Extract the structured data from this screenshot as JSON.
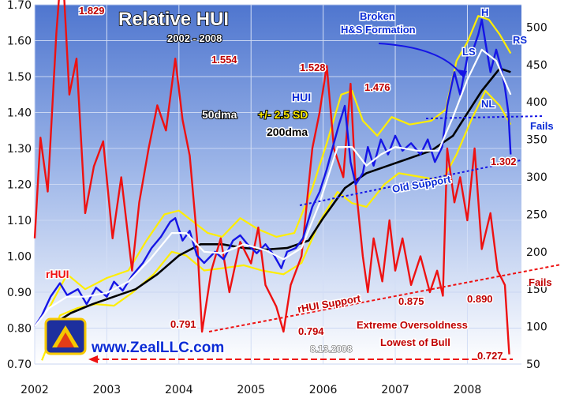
{
  "chart_data": {
    "type": "line",
    "title": "Relative HUI",
    "subtitle": "2002 - 2008",
    "x_ticks": [
      "2002",
      "2003",
      "2004",
      "2005",
      "2006",
      "2007",
      "2008"
    ],
    "y_left": {
      "ticks": [
        "0.70",
        "0.80",
        "0.90",
        "1.00",
        "1.10",
        "1.20",
        "1.30",
        "1.40",
        "1.50",
        "1.60",
        "1.70"
      ],
      "range": [
        0.7,
        1.7
      ]
    },
    "y_right": {
      "ticks": [
        "50",
        "100",
        "150",
        "200",
        "250",
        "300",
        "350",
        "400",
        "450",
        "500"
      ],
      "range": [
        50,
        530
      ]
    },
    "legend_inline": {
      "hui": "HUI",
      "dma50": "50dma",
      "sd": "+/- 2.5 SD",
      "dma200": "200dma",
      "rhui": "rHUI"
    },
    "series": [
      {
        "name": "rHUI",
        "axis": "left",
        "color": "#ee1111",
        "points": [
          [
            2002.0,
            1.05
          ],
          [
            2002.08,
            1.33
          ],
          [
            2002.18,
            1.18
          ],
          [
            2002.3,
            1.62
          ],
          [
            2002.38,
            1.83
          ],
          [
            2002.48,
            1.45
          ],
          [
            2002.58,
            1.55
          ],
          [
            2002.7,
            1.12
          ],
          [
            2002.82,
            1.25
          ],
          [
            2002.95,
            1.32
          ],
          [
            2003.08,
            1.05
          ],
          [
            2003.2,
            1.22
          ],
          [
            2003.35,
            0.96
          ],
          [
            2003.45,
            1.15
          ],
          [
            2003.58,
            1.3
          ],
          [
            2003.7,
            1.42
          ],
          [
            2003.82,
            1.35
          ],
          [
            2003.95,
            1.55
          ],
          [
            2004.05,
            1.38
          ],
          [
            2004.15,
            1.28
          ],
          [
            2004.25,
            1.05
          ],
          [
            2004.32,
            0.79
          ],
          [
            2004.45,
            0.96
          ],
          [
            2004.58,
            1.05
          ],
          [
            2004.7,
            0.9
          ],
          [
            2004.85,
            1.04
          ],
          [
            2005.0,
            0.98
          ],
          [
            2005.1,
            1.08
          ],
          [
            2005.2,
            0.92
          ],
          [
            2005.35,
            0.86
          ],
          [
            2005.45,
            0.79
          ],
          [
            2005.55,
            0.92
          ],
          [
            2005.7,
            1.0
          ],
          [
            2005.85,
            1.3
          ],
          [
            2005.95,
            1.4
          ],
          [
            2006.05,
            1.53
          ],
          [
            2006.15,
            1.3
          ],
          [
            2006.28,
            1.22
          ],
          [
            2006.38,
            1.48
          ],
          [
            2006.45,
            1.2
          ],
          [
            2006.55,
            1.0
          ],
          [
            2006.62,
            0.9
          ],
          [
            2006.7,
            1.05
          ],
          [
            2006.82,
            0.93
          ],
          [
            2006.92,
            1.1
          ],
          [
            2007.0,
            0.96
          ],
          [
            2007.1,
            1.05
          ],
          [
            2007.22,
            0.92
          ],
          [
            2007.35,
            1.0
          ],
          [
            2007.48,
            0.9
          ],
          [
            2007.58,
            0.96
          ],
          [
            2007.66,
            0.89
          ],
          [
            2007.72,
            1.3
          ],
          [
            2007.82,
            1.15
          ],
          [
            2007.9,
            1.22
          ],
          [
            2008.0,
            1.1
          ],
          [
            2008.1,
            1.3
          ],
          [
            2008.2,
            1.02
          ],
          [
            2008.32,
            1.12
          ],
          [
            2008.42,
            0.96
          ],
          [
            2008.52,
            0.92
          ],
          [
            2008.58,
            0.727
          ]
        ]
      },
      {
        "name": "HUI",
        "axis": "right",
        "color": "#1515e6",
        "points": [
          [
            2002.0,
            100
          ],
          [
            2002.1,
            115
          ],
          [
            2002.22,
            140
          ],
          [
            2002.35,
            158
          ],
          [
            2002.45,
            142
          ],
          [
            2002.6,
            150
          ],
          [
            2002.72,
            130
          ],
          [
            2002.85,
            152
          ],
          [
            2003.0,
            140
          ],
          [
            2003.1,
            160
          ],
          [
            2003.22,
            148
          ],
          [
            2003.35,
            168
          ],
          [
            2003.5,
            185
          ],
          [
            2003.62,
            205
          ],
          [
            2003.75,
            220
          ],
          [
            2003.88,
            240
          ],
          [
            2003.95,
            245
          ],
          [
            2004.05,
            215
          ],
          [
            2004.15,
            228
          ],
          [
            2004.25,
            195
          ],
          [
            2004.35,
            185
          ],
          [
            2004.5,
            200
          ],
          [
            2004.62,
            190
          ],
          [
            2004.75,
            215
          ],
          [
            2004.85,
            222
          ],
          [
            2004.95,
            210
          ],
          [
            2005.08,
            198
          ],
          [
            2005.2,
            210
          ],
          [
            2005.32,
            195
          ],
          [
            2005.42,
            178
          ],
          [
            2005.5,
            200
          ],
          [
            2005.62,
            205
          ],
          [
            2005.72,
            218
          ],
          [
            2005.85,
            260
          ],
          [
            2005.95,
            280
          ],
          [
            2006.05,
            310
          ],
          [
            2006.12,
            335
          ],
          [
            2006.22,
            370
          ],
          [
            2006.3,
            395
          ],
          [
            2006.38,
            320
          ],
          [
            2006.45,
            290
          ],
          [
            2006.55,
            305
          ],
          [
            2006.62,
            340
          ],
          [
            2006.7,
            315
          ],
          [
            2006.8,
            350
          ],
          [
            2006.9,
            330
          ],
          [
            2007.0,
            355
          ],
          [
            2007.1,
            335
          ],
          [
            2007.22,
            345
          ],
          [
            2007.35,
            330
          ],
          [
            2007.45,
            350
          ],
          [
            2007.55,
            320
          ],
          [
            2007.65,
            340
          ],
          [
            2007.72,
            395
          ],
          [
            2007.82,
            440
          ],
          [
            2007.9,
            410
          ],
          [
            2008.0,
            460
          ],
          [
            2008.08,
            470
          ],
          [
            2008.15,
            490
          ],
          [
            2008.2,
            510
          ],
          [
            2008.25,
            480
          ],
          [
            2008.32,
            440
          ],
          [
            2008.4,
            470
          ],
          [
            2008.47,
            445
          ],
          [
            2008.52,
            420
          ],
          [
            2008.57,
            385
          ],
          [
            2008.6,
            330
          ]
        ]
      },
      {
        "name": "50dma",
        "axis": "right",
        "color": "#ffffff",
        "points": [
          [
            2002.0,
            100
          ],
          [
            2002.2,
            125
          ],
          [
            2002.45,
            140
          ],
          [
            2002.7,
            140
          ],
          [
            2003.0,
            145
          ],
          [
            2003.3,
            160
          ],
          [
            2003.6,
            190
          ],
          [
            2003.9,
            225
          ],
          [
            2004.1,
            225
          ],
          [
            2004.35,
            200
          ],
          [
            2004.6,
            198
          ],
          [
            2004.9,
            210
          ],
          [
            2005.2,
            202
          ],
          [
            2005.45,
            190
          ],
          [
            2005.7,
            205
          ],
          [
            2005.95,
            265
          ],
          [
            2006.2,
            340
          ],
          [
            2006.4,
            340
          ],
          [
            2006.6,
            315
          ],
          [
            2006.8,
            330
          ],
          [
            2007.0,
            340
          ],
          [
            2007.3,
            335
          ],
          [
            2007.6,
            335
          ],
          [
            2007.8,
            380
          ],
          [
            2008.0,
            430
          ],
          [
            2008.2,
            470
          ],
          [
            2008.4,
            455
          ],
          [
            2008.6,
            410
          ]
        ]
      },
      {
        "name": "200dma",
        "axis": "right",
        "color": "#000000",
        "points": [
          [
            2002.2,
            100
          ],
          [
            2002.5,
            118
          ],
          [
            2002.8,
            130
          ],
          [
            2003.1,
            140
          ],
          [
            2003.4,
            150
          ],
          [
            2003.7,
            170
          ],
          [
            2004.0,
            195
          ],
          [
            2004.3,
            210
          ],
          [
            2004.6,
            210
          ],
          [
            2004.9,
            205
          ],
          [
            2005.2,
            203
          ],
          [
            2005.5,
            205
          ],
          [
            2005.8,
            215
          ],
          [
            2006.0,
            245
          ],
          [
            2006.3,
            285
          ],
          [
            2006.6,
            305
          ],
          [
            2006.9,
            315
          ],
          [
            2007.2,
            325
          ],
          [
            2007.5,
            335
          ],
          [
            2007.8,
            355
          ],
          [
            2008.0,
            385
          ],
          [
            2008.2,
            415
          ],
          [
            2008.45,
            445
          ],
          [
            2008.6,
            440
          ]
        ]
      },
      {
        "name": "+2.5 SD",
        "axis": "right",
        "color": "#ffee00",
        "points": [
          [
            2002.2,
            125
          ],
          [
            2002.45,
            170
          ],
          [
            2002.7,
            150
          ],
          [
            2003.0,
            165
          ],
          [
            2003.3,
            175
          ],
          [
            2003.55,
            215
          ],
          [
            2003.8,
            250
          ],
          [
            2004.0,
            255
          ],
          [
            2004.2,
            240
          ],
          [
            2004.4,
            225
          ],
          [
            2004.6,
            220
          ],
          [
            2004.85,
            245
          ],
          [
            2005.1,
            230
          ],
          [
            2005.35,
            220
          ],
          [
            2005.6,
            225
          ],
          [
            2005.85,
            285
          ],
          [
            2006.05,
            345
          ],
          [
            2006.25,
            410
          ],
          [
            2006.4,
            415
          ],
          [
            2006.55,
            375
          ],
          [
            2006.75,
            355
          ],
          [
            2006.95,
            380
          ],
          [
            2007.2,
            370
          ],
          [
            2007.5,
            375
          ],
          [
            2007.7,
            390
          ],
          [
            2007.85,
            455
          ],
          [
            2008.0,
            480
          ],
          [
            2008.15,
            515
          ],
          [
            2008.3,
            510
          ],
          [
            2008.45,
            490
          ],
          [
            2008.6,
            465
          ]
        ]
      },
      {
        "name": "-2.5 SD",
        "axis": "right",
        "color": "#ffee00",
        "points": [
          [
            2002.1,
            55
          ],
          [
            2002.35,
            115
          ],
          [
            2002.6,
            125
          ],
          [
            2002.85,
            130
          ],
          [
            2003.1,
            128
          ],
          [
            2003.35,
            145
          ],
          [
            2003.65,
            170
          ],
          [
            2003.9,
            200
          ],
          [
            2004.1,
            195
          ],
          [
            2004.35,
            175
          ],
          [
            2004.6,
            178
          ],
          [
            2004.9,
            182
          ],
          [
            2005.15,
            175
          ],
          [
            2005.45,
            170
          ],
          [
            2005.7,
            185
          ],
          [
            2005.95,
            240
          ],
          [
            2006.2,
            280
          ],
          [
            2006.4,
            265
          ],
          [
            2006.6,
            260
          ],
          [
            2006.85,
            290
          ],
          [
            2007.05,
            305
          ],
          [
            2007.35,
            300
          ],
          [
            2007.65,
            295
          ],
          [
            2007.85,
            330
          ],
          [
            2008.05,
            375
          ],
          [
            2008.25,
            415
          ],
          [
            2008.45,
            395
          ],
          [
            2008.6,
            370
          ]
        ]
      }
    ],
    "annotations": {
      "peak1": "1.829",
      "peak2": "1.554",
      "peak3": "1.528",
      "peak4": "1.476",
      "low1": "0.791",
      "low2": "0.794",
      "low3": "0.875",
      "low4": "0.890",
      "level1302": "1.302",
      "last": "0.727",
      "hs": [
        "Broken",
        "H&S Formation"
      ],
      "ls": "LS",
      "h": "H",
      "rs": "RS",
      "nl": "NL",
      "fails_top": "Fails",
      "fails_bottom": "Fails",
      "old_support": "Old Support",
      "rhui_support": "rHUI Support",
      "oversold": "Extreme Oversoldness",
      "lowest": "Lowest of Bull",
      "date": "8.13.2008",
      "website": "www.ZealLLC.com"
    }
  }
}
